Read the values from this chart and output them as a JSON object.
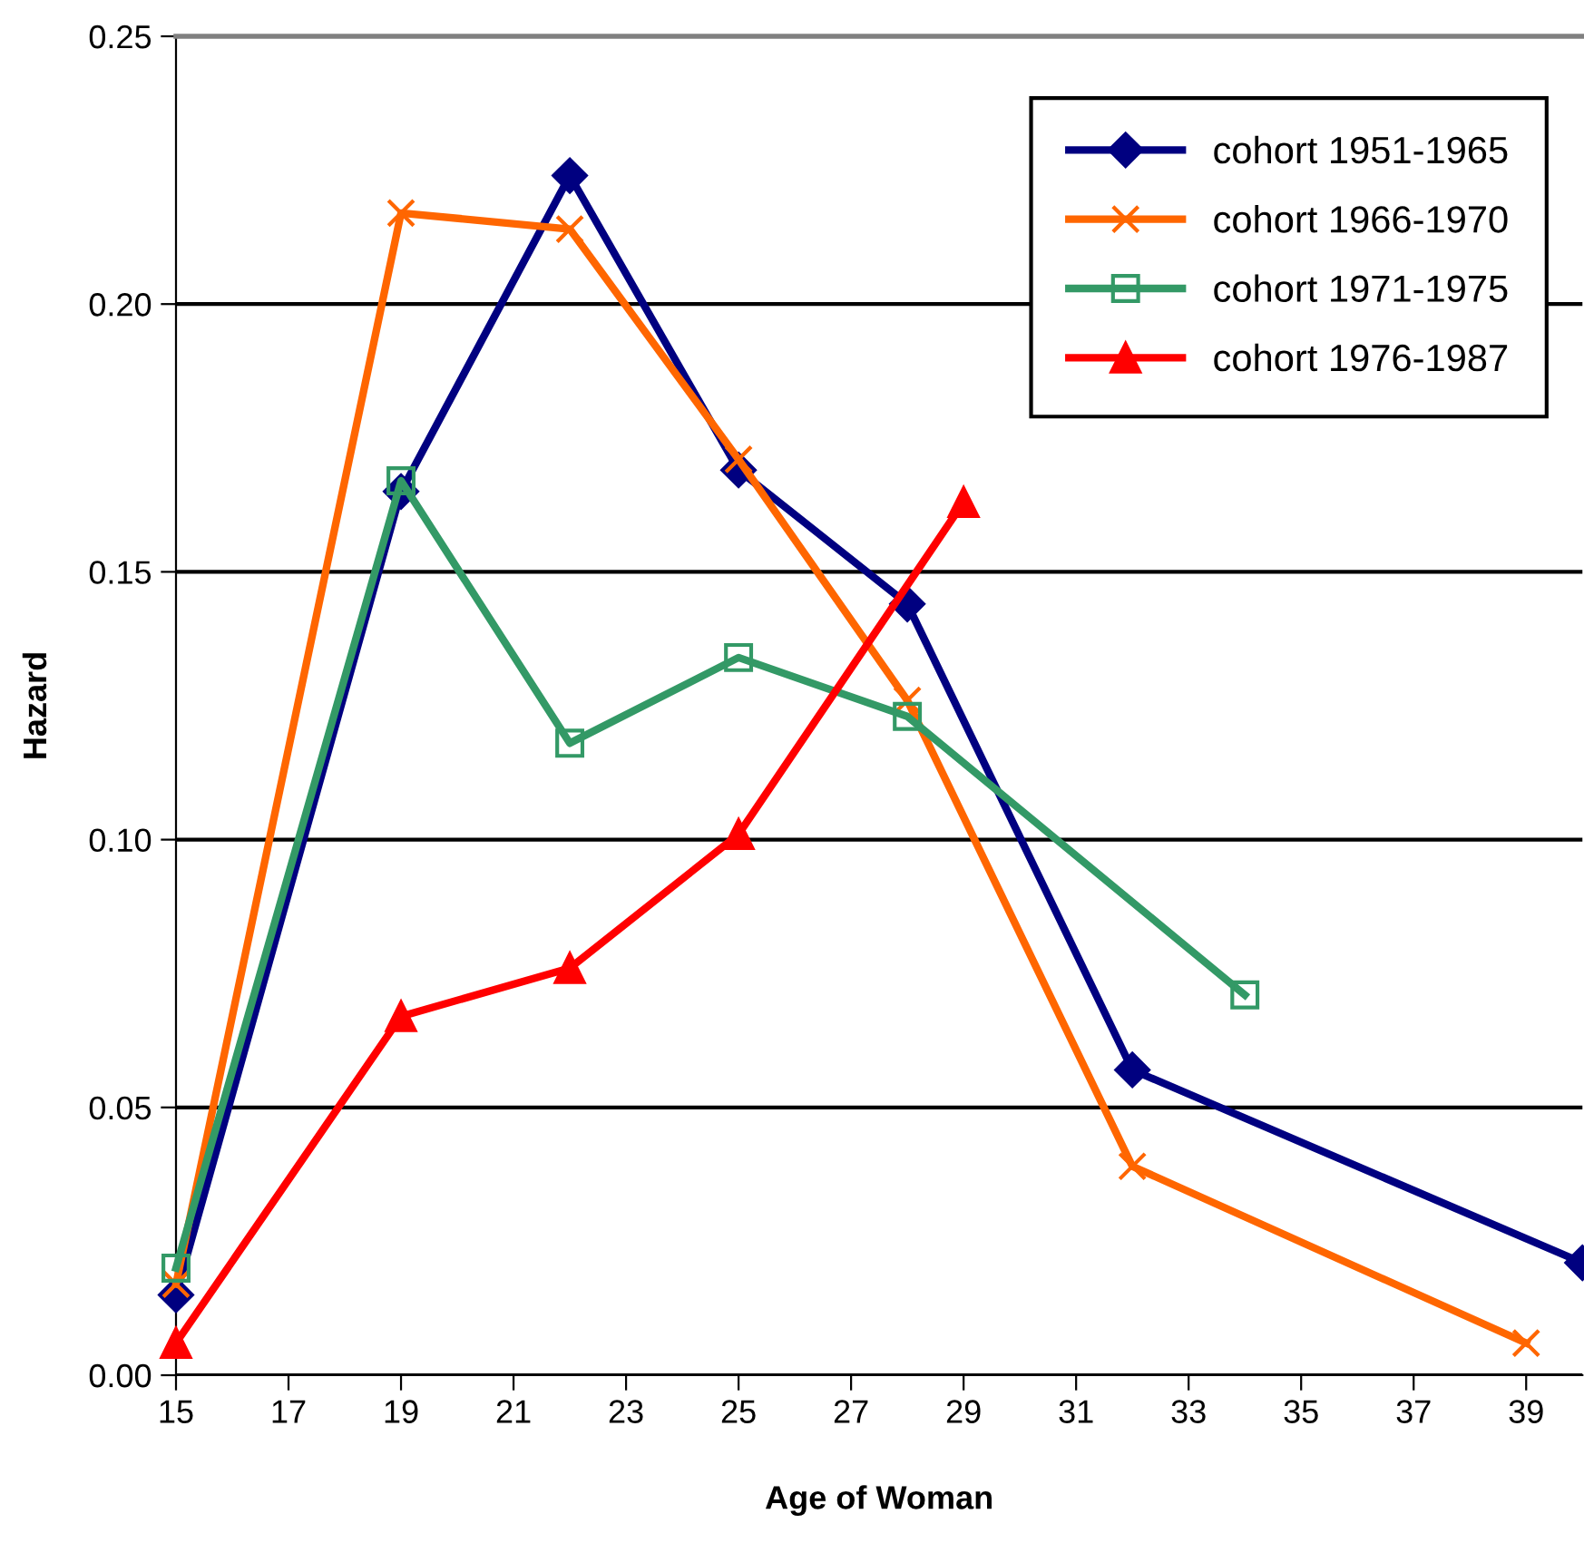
{
  "chart_data": {
    "type": "line",
    "xlabel": "Age of Woman",
    "ylabel": "Hazard",
    "xlim": [
      15,
      40
    ],
    "xticks": [
      15,
      17,
      19,
      21,
      23,
      25,
      27,
      29,
      31,
      33,
      35,
      37,
      39
    ],
    "ylim": [
      0,
      0.25
    ],
    "yticks": [
      {
        "value": 0,
        "label": "0.00"
      },
      {
        "value": 0.05,
        "label": "0.05"
      },
      {
        "value": 0.1,
        "label": "0.10"
      },
      {
        "value": 0.15,
        "label": "0.15"
      },
      {
        "value": 0.2,
        "label": "0.20"
      },
      {
        "value": 0.25,
        "label": "0.25"
      }
    ],
    "grid": "y",
    "legend": "top right",
    "series": [
      {
        "name": "cohort 1951-1965",
        "color": "#000080",
        "marker": "diamond",
        "x": [
          15,
          19,
          22,
          25,
          28,
          32,
          40
        ],
        "values": [
          0.015,
          0.165,
          0.224,
          0.169,
          0.144,
          0.057,
          0.021
        ]
      },
      {
        "name": "cohort 1966-1970",
        "color": "#ff6600",
        "marker": "cross",
        "x": [
          15,
          19,
          22,
          25,
          28,
          32,
          39
        ],
        "values": [
          0.017,
          0.217,
          0.214,
          0.171,
          0.126,
          0.039,
          0.006
        ]
      },
      {
        "name": "cohort 1971-1975",
        "color": "#339966",
        "marker": "square",
        "x": [
          15,
          19,
          22,
          25,
          28,
          34
        ],
        "values": [
          0.02,
          0.167,
          0.118,
          0.134,
          0.123,
          0.071
        ]
      },
      {
        "name": "cohort 1976-1987",
        "color": "#ff0000",
        "marker": "triangle",
        "x": [
          15,
          19,
          22,
          25,
          29
        ],
        "values": [
          0.006,
          0.067,
          0.076,
          0.101,
          0.163
        ]
      }
    ]
  }
}
